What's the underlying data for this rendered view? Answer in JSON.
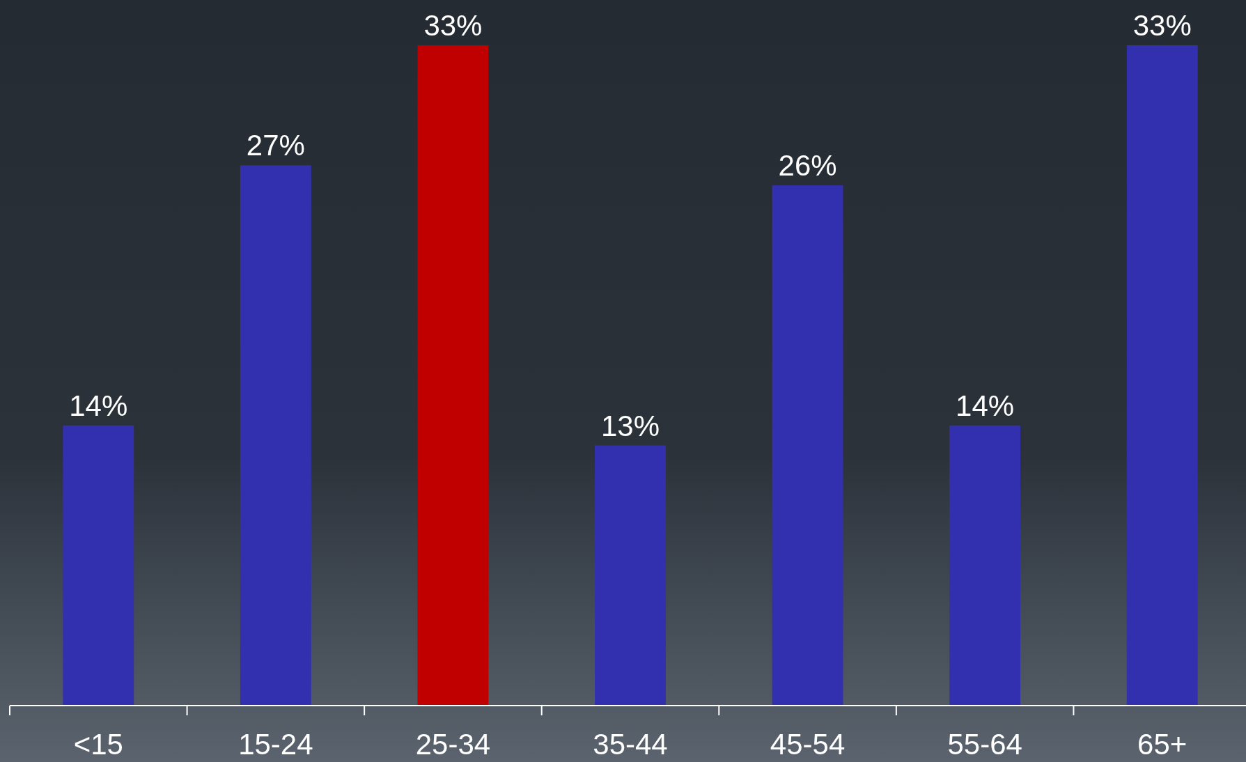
{
  "chart_data": {
    "type": "bar",
    "categories": [
      "<15",
      "15-24",
      "25-34",
      "35-44",
      "45-54",
      "55-64",
      "65+"
    ],
    "values": [
      14,
      27,
      33,
      13,
      26,
      14,
      33
    ],
    "colors": [
      "#3330b0",
      "#3330b0",
      "#c00000",
      "#3330b0",
      "#3330b0",
      "#3330b0",
      "#3330b0"
    ],
    "value_labels": [
      "14%",
      "27%",
      "33%",
      "13%",
      "26%",
      "14%",
      "33%"
    ]
  }
}
